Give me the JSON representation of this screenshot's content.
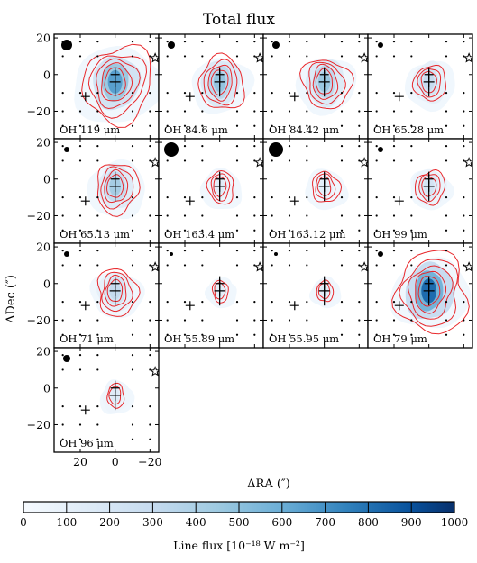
{
  "figure": {
    "title": "Total flux",
    "ylabel": "ΔDec (″)",
    "xlabel": "ΔRA (″)",
    "ytick_labels": [
      "20",
      "0",
      "−20"
    ],
    "xtick_labels": [
      "20",
      "0",
      "−20"
    ],
    "colorbar_label": "Line flux [10⁻¹⁸ W m⁻²]",
    "colorbar_ticks": [
      "0",
      "100",
      "200",
      "300",
      "400",
      "500",
      "600",
      "700",
      "800",
      "900",
      "1000"
    ]
  },
  "chart_data": {
    "type": "heatmap",
    "title": "Total flux",
    "xlabel": "ΔRA (″)",
    "ylabel": "ΔDec (″)",
    "xlim": [
      35,
      -25
    ],
    "ylim": [
      -35,
      22
    ],
    "xticks": [
      20,
      0,
      -20
    ],
    "yticks": [
      20,
      0,
      -20
    ],
    "colorbar": {
      "label": "Line flux [10⁻¹⁸ W m⁻²]",
      "range": [
        0,
        1000
      ],
      "ticks": [
        0,
        100,
        200,
        300,
        400,
        500,
        600,
        700,
        800,
        900,
        1000
      ]
    },
    "colors": {
      "colormap_low": "#f7fbff",
      "colormap_high": "#08306b",
      "contour": "#e8272b"
    },
    "markers": {
      "source_plus": {
        "x": 0,
        "y": -4
      },
      "source_plus_2": {
        "x": 0,
        "y": 0
      },
      "offset_plus": {
        "x": 17,
        "y": -12
      },
      "star": {
        "x": -23,
        "y": 9
      }
    },
    "panels": [
      {
        "label": "OH 119 μm",
        "peak": 650,
        "beam": 6,
        "blob": 1.0,
        "halo": 1.0,
        "contours": 5
      },
      {
        "label": "OH 84.6 μm",
        "peak": 480,
        "beam": 4,
        "blob": 0.85,
        "halo": 0.7,
        "contours": 4
      },
      {
        "label": "OH 84.42 μm",
        "peak": 460,
        "beam": 4,
        "blob": 0.85,
        "halo": 0.7,
        "contours": 4
      },
      {
        "label": "OH 65.28 μm",
        "peak": 300,
        "beam": 3,
        "blob": 0.75,
        "halo": 0.6,
        "contours": 3
      },
      {
        "label": "OH 65.13 μm",
        "peak": 420,
        "beam": 3,
        "blob": 0.8,
        "halo": 0.7,
        "contours": 4
      },
      {
        "label": "OH 163.4 μm",
        "peak": 130,
        "beam": 8,
        "blob": 0.65,
        "halo": 0.5,
        "contours": 3
      },
      {
        "label": "OH 163.12 μm",
        "peak": 120,
        "beam": 8,
        "blob": 0.65,
        "halo": 0.5,
        "contours": 3
      },
      {
        "label": "OH 99 μm",
        "peak": 220,
        "beam": 3,
        "blob": 0.7,
        "halo": 0.5,
        "contours": 3
      },
      {
        "label": "OH 71 μm",
        "peak": 300,
        "beam": 3,
        "blob": 0.75,
        "halo": 0.6,
        "contours": 4
      },
      {
        "label": "OH 55.89 μm",
        "peak": 120,
        "beam": 2,
        "blob": 0.55,
        "halo": 0.35,
        "contours": 2
      },
      {
        "label": "OH 55.95 μm",
        "peak": 130,
        "beam": 2,
        "blob": 0.55,
        "halo": 0.35,
        "contours": 2
      },
      {
        "label": "OH 79 μm",
        "peak": 820,
        "beam": 3,
        "blob": 1.05,
        "halo": 0.9,
        "contours": 5
      },
      {
        "label": "OH 96 μm",
        "peak": 150,
        "beam": 4,
        "blob": 0.6,
        "halo": 0.4,
        "contours": 2
      }
    ]
  }
}
